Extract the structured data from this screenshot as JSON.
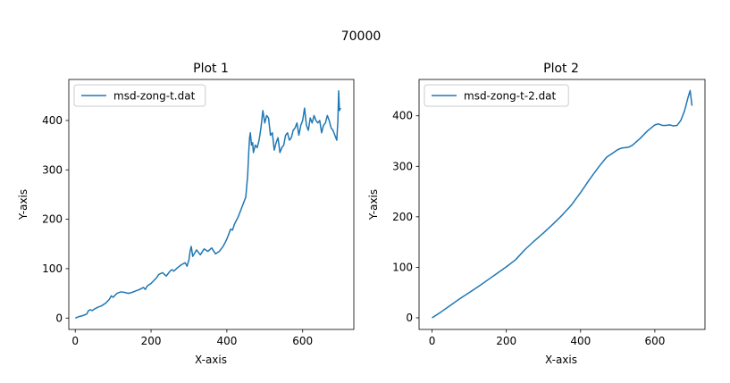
{
  "figure": {
    "suptitle": "70000"
  },
  "chart_data": [
    {
      "type": "line",
      "title": "Plot 1",
      "xlabel": "X-axis",
      "ylabel": "Y-axis",
      "xlim": [
        -17,
        735
      ],
      "ylim": [
        -23,
        483
      ],
      "xticks": [
        0,
        200,
        400,
        600
      ],
      "yticks": [
        0,
        100,
        200,
        300,
        400
      ],
      "legend": "upper left",
      "grid": false,
      "color": "#1f77b4",
      "series": [
        {
          "name": "msd-zong-t.dat",
          "x": [
            0,
            10,
            20,
            30,
            35,
            40,
            45,
            50,
            60,
            70,
            80,
            90,
            95,
            100,
            110,
            120,
            130,
            140,
            150,
            160,
            170,
            180,
            185,
            190,
            200,
            210,
            215,
            220,
            230,
            240,
            250,
            255,
            260,
            270,
            280,
            290,
            295,
            300,
            303,
            306,
            310,
            320,
            330,
            340,
            350,
            360,
            370,
            380,
            390,
            395,
            400,
            405,
            410,
            415,
            420,
            430,
            440,
            450,
            455,
            458,
            460,
            462,
            465,
            468,
            470,
            475,
            480,
            485,
            490,
            495,
            500,
            505,
            510,
            515,
            520,
            525,
            530,
            535,
            540,
            545,
            550,
            555,
            560,
            565,
            570,
            575,
            580,
            585,
            590,
            595,
            600,
            605,
            610,
            615,
            620,
            625,
            630,
            635,
            640,
            645,
            650,
            655,
            660,
            665,
            670,
            675,
            680,
            685,
            690,
            693,
            695,
            697,
            700
          ],
          "y": [
            0,
            3,
            5,
            8,
            15,
            17,
            15,
            18,
            22,
            25,
            30,
            38,
            45,
            42,
            50,
            53,
            52,
            50,
            52,
            55,
            58,
            62,
            58,
            65,
            70,
            78,
            82,
            88,
            92,
            85,
            95,
            98,
            95,
            102,
            108,
            112,
            105,
            118,
            135,
            145,
            125,
            138,
            128,
            140,
            135,
            142,
            130,
            135,
            145,
            152,
            160,
            170,
            180,
            178,
            190,
            205,
            225,
            245,
            290,
            340,
            365,
            375,
            350,
            355,
            335,
            350,
            345,
            360,
            385,
            420,
            395,
            410,
            405,
            370,
            375,
            340,
            355,
            365,
            335,
            345,
            350,
            370,
            375,
            360,
            365,
            380,
            385,
            395,
            370,
            390,
            400,
            425,
            390,
            380,
            405,
            395,
            410,
            400,
            395,
            400,
            375,
            390,
            395,
            410,
            400,
            385,
            380,
            370,
            360,
            400,
            460,
            420,
            425
          ]
        }
      ]
    },
    {
      "type": "line",
      "title": "Plot 2",
      "xlabel": "X-axis",
      "ylabel": "Y-axis",
      "xlim": [
        -35,
        735
      ],
      "ylim": [
        -23,
        472
      ],
      "xticks": [
        0,
        200,
        400,
        600
      ],
      "yticks": [
        0,
        100,
        200,
        300,
        400
      ],
      "legend": "upper left",
      "grid": false,
      "color": "#1f77b4",
      "series": [
        {
          "name": "msd-zong-t-2.dat",
          "x": [
            0,
            25,
            50,
            75,
            100,
            125,
            150,
            175,
            200,
            225,
            250,
            275,
            300,
            325,
            350,
            375,
            400,
            425,
            450,
            470,
            490,
            500,
            510,
            520,
            530,
            540,
            560,
            580,
            600,
            610,
            620,
            630,
            640,
            650,
            660,
            670,
            680,
            690,
            695,
            700
          ],
          "y": [
            0,
            12,
            25,
            38,
            50,
            62,
            75,
            88,
            101,
            115,
            135,
            152,
            168,
            185,
            203,
            223,
            248,
            275,
            300,
            318,
            328,
            333,
            336,
            337,
            338,
            342,
            355,
            370,
            382,
            384,
            381,
            381,
            382,
            380,
            381,
            391,
            410,
            438,
            450,
            420
          ]
        }
      ]
    }
  ]
}
